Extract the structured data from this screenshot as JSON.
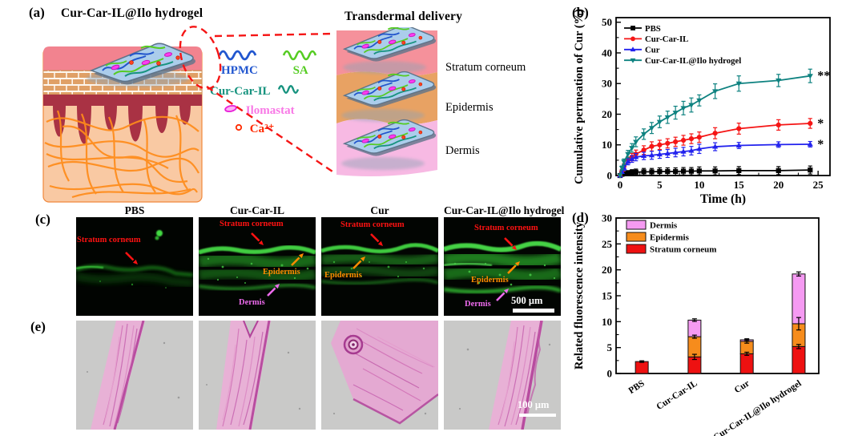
{
  "panels": {
    "a": "(a)",
    "b": "(b)",
    "c": "(c)",
    "d": "(d)",
    "e": "(e)"
  },
  "panel_a": {
    "hydrogel_title": "Cur-Car-IL@Ilo hydrogel",
    "delivery_title": "Transdermal delivery",
    "legend": {
      "hpmc": {
        "label": "HPMC",
        "color": "#2156cf"
      },
      "sa": {
        "label": "SA",
        "color": "#55cc22"
      },
      "cur_car_il": {
        "label": "Cur-Car-IL",
        "color": "#17937f"
      },
      "ilomastat": {
        "label": "Ilomastat",
        "color": "#f878e6"
      },
      "ca": {
        "label": "Ca²⁺",
        "color": "#ff2a00"
      }
    },
    "layer_labels": [
      "Stratum corneum",
      "Epidermis",
      "Dermis"
    ]
  },
  "panel_b": {
    "chart_data": {
      "type": "line",
      "xlabel": "Time (h)",
      "ylabel": "Cumulative permeation of Cur (%)",
      "xlim": [
        0,
        26.5
      ],
      "ylim": [
        0,
        50
      ],
      "xticks": [
        0,
        5,
        10,
        15,
        20,
        25
      ],
      "yticks": [
        0,
        10,
        20,
        30,
        40,
        50
      ],
      "legend_position": "top-left",
      "x": [
        0,
        0.25,
        0.5,
        1,
        1.5,
        2,
        3,
        4,
        5,
        6,
        7,
        8,
        9,
        10,
        12,
        15,
        20,
        24
      ],
      "series": [
        {
          "name": "PBS",
          "color": "#000000",
          "marker": "square",
          "sig": "",
          "values": [
            0,
            0.4,
            0.6,
            0.9,
            1.0,
            1.1,
            1.2,
            1.2,
            1.3,
            1.3,
            1.3,
            1.4,
            1.4,
            1.5,
            1.5,
            1.6,
            1.6,
            1.8
          ],
          "error": [
            0,
            0.4,
            0.5,
            0.7,
            0.9,
            1.0,
            1.1,
            1.1,
            1.2,
            1.2,
            1.2,
            1.2,
            1.2,
            1.3,
            1.3,
            1.3,
            1.3,
            1.3
          ]
        },
        {
          "name": "Cur-Car-IL",
          "color": "#f51515",
          "marker": "circle",
          "sig": "*",
          "values": [
            0,
            1.5,
            3.0,
            5.0,
            6.0,
            7.0,
            8.3,
            9.5,
            10.0,
            10.5,
            11.0,
            11.5,
            12.0,
            12.5,
            13.8,
            15.3,
            16.5,
            17.0
          ],
          "error": [
            0,
            0.5,
            0.8,
            1.0,
            1.2,
            1.3,
            1.4,
            1.5,
            1.5,
            1.5,
            1.5,
            1.6,
            1.6,
            1.7,
            1.8,
            1.8,
            1.7,
            1.6
          ]
        },
        {
          "name": "Cur",
          "color": "#2222ee",
          "marker": "triangle-up",
          "sig": "*",
          "values": [
            0,
            1.2,
            2.5,
            4.5,
            5.4,
            6.0,
            6.4,
            6.6,
            6.9,
            7.2,
            7.5,
            7.8,
            8.1,
            8.7,
            9.4,
            9.8,
            10.1,
            10.2
          ],
          "error": [
            0,
            0.5,
            0.8,
            1.0,
            1.1,
            1.2,
            1.2,
            1.3,
            1.3,
            1.3,
            1.4,
            1.4,
            1.4,
            1.5,
            1.3,
            1.0,
            0.9,
            0.9
          ]
        },
        {
          "name": "Cur-Car-IL@Ilo hydrogel",
          "color": "#0e8280",
          "marker": "triangle-down",
          "sig": "**",
          "values": [
            0,
            2.5,
            4.5,
            7.0,
            9.0,
            11.0,
            13.5,
            15.5,
            17.5,
            19.0,
            20.5,
            22.0,
            23.0,
            24.5,
            27.5,
            30.0,
            31.0,
            32.5
          ],
          "error": [
            0,
            0.6,
            0.9,
            1.2,
            1.4,
            1.6,
            1.7,
            1.8,
            1.9,
            2.0,
            2.1,
            2.2,
            2.3,
            1.8,
            2.4,
            2.5,
            2.0,
            2.2
          ]
        }
      ]
    }
  },
  "panel_c": {
    "column_titles": [
      "PBS",
      "Cur-Car-IL",
      "Cur",
      "Cur-Car-IL@Ilo hydrogel"
    ],
    "labels": {
      "sc": {
        "text": "Stratum corneum",
        "color": "#ff1212"
      },
      "epi": {
        "text": "Epidermis",
        "color": "#ff8c00"
      },
      "der": {
        "text": "Dermis",
        "color": "#ee6bee"
      }
    },
    "scale_bar": "500 μm"
  },
  "panel_d": {
    "chart_data": {
      "type": "stacked-bar",
      "ylabel": "Related fluorescence intensity",
      "ylim": [
        0,
        30
      ],
      "yticks": [
        0,
        5,
        10,
        15,
        20,
        25,
        30
      ],
      "categories": [
        "PBS",
        "Cur-Car-IL",
        "Cur",
        "Cur-Car-IL@Ilo hydrogel"
      ],
      "series": [
        {
          "name": "Stratum corneum",
          "color": "#ee1111",
          "values": [
            2.3,
            3.2,
            3.8,
            5.2
          ],
          "errors": [
            0.15,
            0.5,
            0.3,
            0.4
          ]
        },
        {
          "name": "Epidermis",
          "color": "#f68c1c",
          "values": [
            0,
            3.9,
            2.4,
            4.4
          ],
          "errors": [
            0,
            0.3,
            0.35,
            1.2
          ]
        },
        {
          "name": "Dermis",
          "color": "#f59af2",
          "values": [
            0,
            3.2,
            0.3,
            9.6
          ],
          "errors": [
            0,
            0.25,
            0.2,
            0.4
          ]
        }
      ],
      "legend_order": [
        "Dermis",
        "Epidermis",
        "Stratum corneum"
      ]
    }
  },
  "panel_e": {
    "scale_bar": "100 μm"
  }
}
